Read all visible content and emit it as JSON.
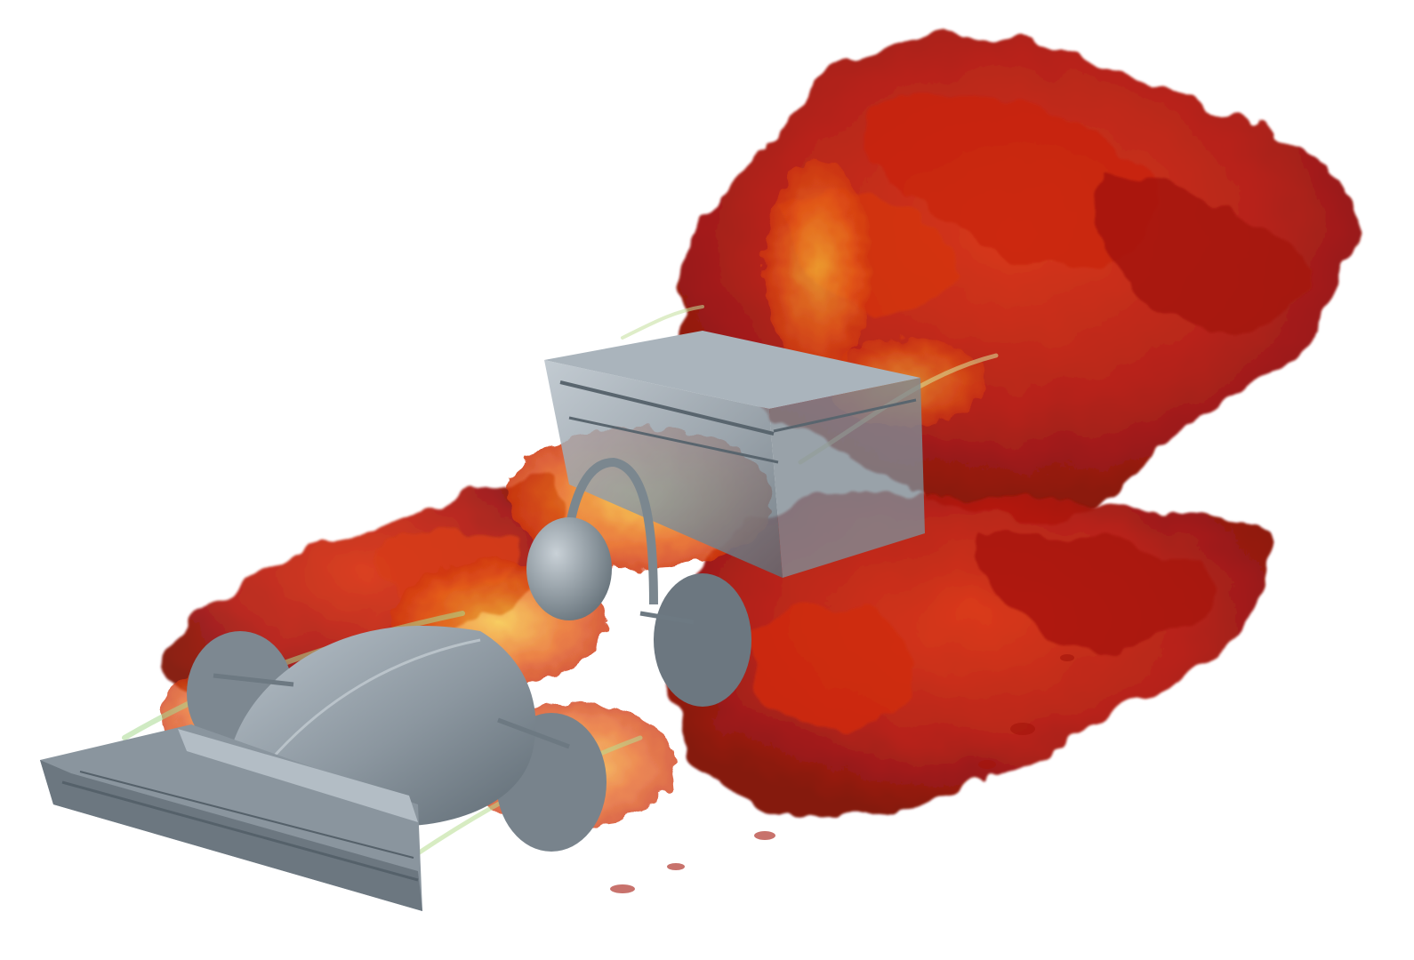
{
  "image": {
    "subject": "cfd-vortex-visualization-of-formula-style-race-car",
    "background_color": "#ffffff"
  },
  "colors": {
    "car_body": "#8a959e",
    "car_shadow": "#5e6a73",
    "car_highlight": "#c4ccd3",
    "vortex_dark_red": "#8f0a06",
    "vortex_red": "#c81d0c",
    "vortex_orange": "#e45a12",
    "vortex_yellow": "#f0b32a",
    "vortex_green": "#9fd08a"
  }
}
